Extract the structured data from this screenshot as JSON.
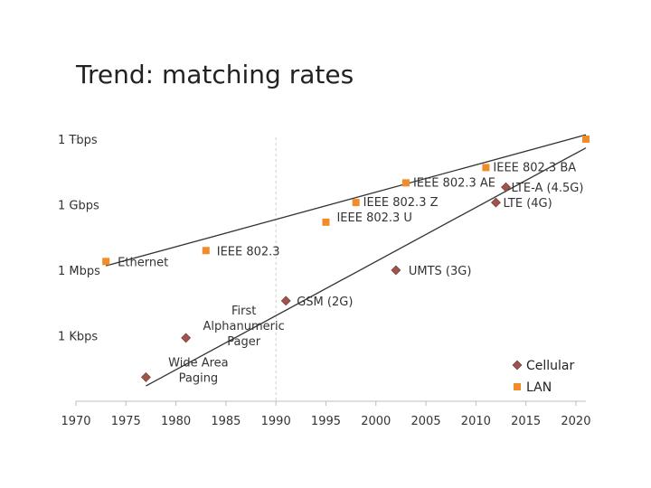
{
  "title": "Trend: matching rates",
  "chart_data": {
    "type": "scatter",
    "title": "Trend: matching rates",
    "xlabel": "",
    "ylabel": "",
    "xlim": [
      1970,
      2021
    ],
    "ylim": [
      0,
      12
    ],
    "y_scale": "log10 bps",
    "x_ticks": [
      1970,
      1975,
      1980,
      1985,
      1990,
      1995,
      2000,
      2005,
      2010,
      2015,
      2020
    ],
    "y_ticks": [
      {
        "value": 3,
        "label": "1 Kbps"
      },
      {
        "value": 6,
        "label": "1 Mbps"
      },
      {
        "value": 9,
        "label": "1 Gbps"
      },
      {
        "value": 12,
        "label": "1 Tbps"
      }
    ],
    "grid": "vertical dashed at 1990",
    "legend_position": "bottom-right",
    "series": [
      {
        "name": "Cellular",
        "marker": "diamond",
        "color": "#a0524d",
        "points": [
          {
            "x": 1977,
            "y": 1.1,
            "label": "Wide Area\nPaging"
          },
          {
            "x": 1981,
            "y": 2.9,
            "label": "First\nAlphanumeric\nPager"
          },
          {
            "x": 1991,
            "y": 4.6,
            "label": "GSM (2G)"
          },
          {
            "x": 2002,
            "y": 6.0,
            "label": "UMTS (3G)"
          },
          {
            "x": 2012,
            "y": 9.1,
            "label": "LTE (4G)"
          },
          {
            "x": 2013,
            "y": 9.8,
            "label": "LTE-A (4.5G)"
          }
        ],
        "trend": {
          "from": [
            1977,
            0.7
          ],
          "to": [
            2021,
            11.6
          ]
        }
      },
      {
        "name": "LAN",
        "marker": "square",
        "color": "#f28c28",
        "points": [
          {
            "x": 1973,
            "y": 6.4,
            "label": "Ethernet"
          },
          {
            "x": 1983,
            "y": 6.9,
            "label": "IEEE 802.3"
          },
          {
            "x": 1995,
            "y": 8.2,
            "label": "IEEE 802.3 U"
          },
          {
            "x": 1998,
            "y": 9.1,
            "label": "IEEE 802.3 Z"
          },
          {
            "x": 2003,
            "y": 10.0,
            "label": "IEEE 802.3 AE"
          },
          {
            "x": 2011,
            "y": 10.7,
            "label": "IEEE 802.3 BA"
          },
          {
            "x": 2021,
            "y": 12.0,
            "label": ""
          }
        ],
        "trend": {
          "from": [
            1973,
            6.2
          ],
          "to": [
            2021,
            12.2
          ]
        }
      }
    ]
  }
}
